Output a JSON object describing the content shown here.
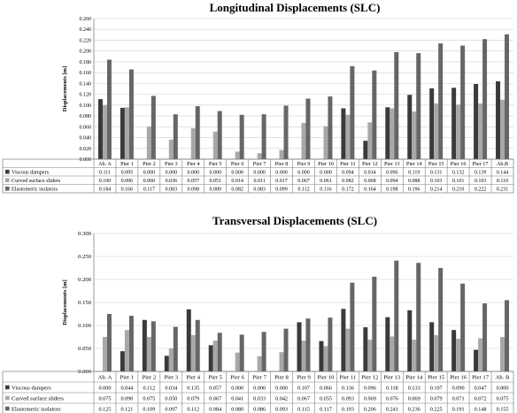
{
  "chart_data": [
    {
      "type": "bar",
      "title": "Longitudinal Displacements (SLC)",
      "xlabel": "",
      "ylabel": "Displacements [m]",
      "ylim": [
        0,
        0.26
      ],
      "yticks": [
        "0.000",
        "0.020",
        "0.040",
        "0.060",
        "0.080",
        "0.100",
        "0.120",
        "0.140",
        "0.160",
        "0.180",
        "0.200",
        "0.220",
        "0.240",
        "0.260"
      ],
      "grid": true,
      "legend": "table-below",
      "categories": [
        "Ab. A",
        "Pier 1",
        "Pier 2",
        "Pier 3",
        "Pier 4",
        "Pier 5",
        "Pier 6",
        "Pier 7",
        "Pier 8",
        "Pier 9",
        "Pier 10",
        "Pier 11",
        "Pier 12",
        "Pier 13",
        "Pier 14",
        "Pier 15",
        "Pier 16",
        "Pier 17",
        "Ab.B"
      ],
      "series": [
        {
          "name": "Viscous dampers",
          "color": "#3a3a3a",
          "values": [
            0.111,
            0.095,
            0.0,
            0.0,
            0.0,
            0.0,
            0.0,
            0.0,
            0.0,
            0.0,
            0.0,
            0.094,
            0.034,
            0.096,
            0.119,
            0.131,
            0.132,
            0.139,
            0.144
          ],
          "labels": [
            "0.111",
            "0.095",
            "0.000",
            "0.000",
            "0.000",
            "0.000",
            "0.000",
            "0.000",
            "0.000",
            "0.000",
            "0.000",
            "0.094",
            "0.034",
            "0.096",
            "0.119",
            "0.131",
            "0.132",
            "0.139",
            "0.144"
          ]
        },
        {
          "name": "Curved surface sliders",
          "color": "#a8a8a8",
          "values": [
            0.1,
            0.096,
            0.06,
            0.036,
            0.057,
            0.051,
            0.014,
            0.011,
            0.017,
            0.067,
            0.061,
            0.082,
            0.068,
            0.094,
            0.088,
            0.103,
            0.101,
            0.103,
            0.11
          ],
          "labels": [
            "0.100",
            "0.096",
            "0.060",
            "0.036",
            "0.057",
            "0.051",
            "0.014",
            "0.011",
            "0.017",
            "0.067",
            "0.061",
            "0.082",
            "0.068",
            "0.094",
            "0.088",
            "0.103",
            "0.101",
            "0.103",
            "0.110"
          ]
        },
        {
          "name": "Elastomeric isolators",
          "color": "#666666",
          "values": [
            0.184,
            0.166,
            0.117,
            0.083,
            0.098,
            0.089,
            0.082,
            0.083,
            0.099,
            0.112,
            0.116,
            0.172,
            0.164,
            0.198,
            0.196,
            0.214,
            0.21,
            0.222,
            0.231
          ],
          "labels": [
            "0.184",
            "0.166",
            "0.117",
            "0.083",
            "0.098",
            "0.089",
            "0.082",
            "0.083",
            "0.099",
            "0.112",
            "0.116",
            "0.172",
            "0.164",
            "0.198",
            "0.196",
            "0.214",
            "0.210",
            "0.222",
            "0.231"
          ]
        }
      ]
    },
    {
      "type": "bar",
      "title": "Transversal Displacements (SLC)",
      "xlabel": "",
      "ylabel": "Displacements [m]",
      "ylim": [
        0,
        0.3
      ],
      "yticks": [
        "0.000",
        "0.050",
        "0.100",
        "0.150",
        "0.200",
        "0.250",
        "0.300"
      ],
      "grid": true,
      "legend": "table-below",
      "categories": [
        "Ab. A",
        "Pier 1",
        "Pier 2",
        "Pier 3",
        "Pier 4",
        "Pier 5",
        "Pier 6",
        "Pier 7",
        "Pier 8",
        "Pier 9",
        "Pier 10",
        "Pier 11",
        "Pier 12",
        "Pier 13",
        "Pier 14",
        "Pier 15",
        "Pier 16",
        "Pier 17",
        "Ab. B"
      ],
      "series": [
        {
          "name": "Viscous dampers",
          "color": "#3a3a3a",
          "values": [
            0.0,
            0.044,
            0.112,
            0.034,
            0.135,
            0.057,
            0.0,
            0.0,
            0.0,
            0.107,
            0.066,
            0.136,
            0.096,
            0.118,
            0.133,
            0.107,
            0.09,
            0.047,
            0.0
          ],
          "labels": [
            "0.000",
            "0.044",
            "0.112",
            "0.034",
            "0.135",
            "0.057",
            "0.000",
            "0.000",
            "0.000",
            "0.107",
            "0.066",
            "0.136",
            "0.096",
            "0.118",
            "0.133",
            "0.107",
            "0.090",
            "0.047",
            "0.000"
          ]
        },
        {
          "name": "Curved surface sliders",
          "color": "#a8a8a8",
          "values": [
            0.075,
            0.09,
            0.075,
            0.05,
            0.079,
            0.067,
            0.041,
            0.033,
            0.042,
            0.067,
            0.055,
            0.093,
            0.069,
            0.076,
            0.069,
            0.079,
            0.071,
            0.072,
            0.075
          ],
          "labels": [
            "0.075",
            "0.090",
            "0.075",
            "0.050",
            "0.079",
            "0.067",
            "0.041",
            "0.033",
            "0.042",
            "0.067",
            "0.055",
            "0.093",
            "0.069",
            "0.076",
            "0.069",
            "0.079",
            "0.071",
            "0.072",
            "0.075"
          ]
        },
        {
          "name": "Elastomeric isolators",
          "color": "#666666",
          "values": [
            0.125,
            0.121,
            0.109,
            0.097,
            0.112,
            0.084,
            0.08,
            0.086,
            0.093,
            0.115,
            0.117,
            0.193,
            0.206,
            0.241,
            0.236,
            0.225,
            0.191,
            0.148,
            0.155
          ],
          "labels": [
            "0.125",
            "0.121",
            "0.109",
            "0.097",
            "0.112",
            "0.084",
            "0.080",
            "0.086",
            "0.093",
            "0.115",
            "0.117",
            "0.193",
            "0.206",
            "0.241",
            "0.236",
            "0.225",
            "0.191",
            "0.148",
            "0.155"
          ]
        }
      ]
    }
  ]
}
